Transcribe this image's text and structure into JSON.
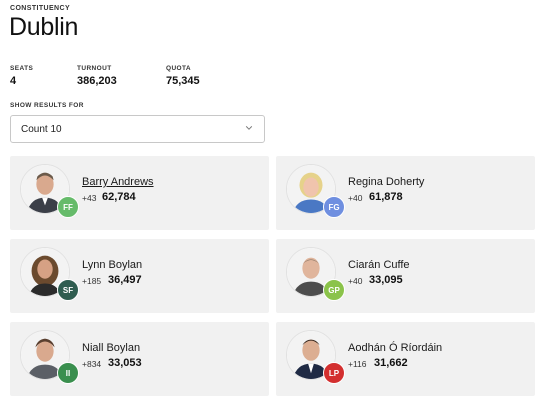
{
  "header": {
    "eyebrow": "CONSTITUENCY",
    "title": "Dublin"
  },
  "stats": [
    {
      "label": "SEATS",
      "value": "4"
    },
    {
      "label": "TURNOUT",
      "value": "386,203"
    },
    {
      "label": "QUOTA",
      "value": "75,345"
    }
  ],
  "results_selector": {
    "label": "SHOW RESULTS FOR",
    "selected": "Count 10"
  },
  "candidates": [
    {
      "name": "Barry Andrews",
      "delta": "+43",
      "votes": "62,784",
      "party": "FF",
      "party_color": "#66bb6a",
      "linked": true
    },
    {
      "name": "Regina Doherty",
      "delta": "+40",
      "votes": "61,878",
      "party": "FG",
      "party_color": "#6f8fe0",
      "linked": false
    },
    {
      "name": "Lynn Boylan",
      "delta": "+185",
      "votes": "36,497",
      "party": "SF",
      "party_color": "#2f5d50",
      "linked": false
    },
    {
      "name": "Ciarán Cuffe",
      "delta": "+40",
      "votes": "33,095",
      "party": "GP",
      "party_color": "#8bc34a",
      "linked": false
    },
    {
      "name": "Niall Boylan",
      "delta": "+834",
      "votes": "33,053",
      "party": "II",
      "party_color": "#3a8f4e",
      "linked": false
    },
    {
      "name": "Aodhán Ó Ríordáin",
      "delta": "+116",
      "votes": "31,662",
      "party": "LP",
      "party_color": "#d32f2f",
      "linked": false
    }
  ]
}
